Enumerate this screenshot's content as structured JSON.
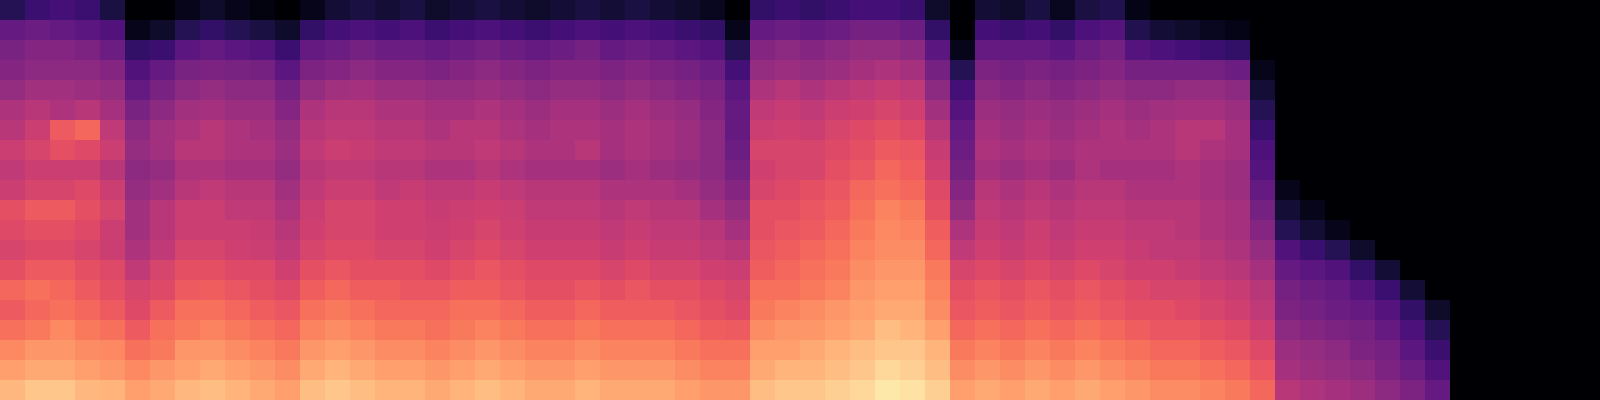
{
  "chart_data": {
    "type": "heatmap",
    "color": "magma",
    "tick_labels": false,
    "zlim": [
      0,
      100
    ],
    "z": [
      [
        15,
        30,
        35,
        38,
        42,
        48,
        50,
        55,
        52,
        55,
        62,
        60,
        58,
        62,
        68,
        65,
        70,
        75,
        80,
        85
      ],
      [
        20,
        32,
        38,
        40,
        45,
        50,
        55,
        58,
        55,
        58,
        65,
        62,
        60,
        65,
        70,
        68,
        72,
        78,
        82,
        88
      ],
      [
        22,
        30,
        38,
        40,
        45,
        48,
        65,
        62,
        55,
        58,
        65,
        62,
        60,
        65,
        68,
        70,
        75,
        78,
        82,
        88
      ],
      [
        20,
        28,
        36,
        40,
        44,
        50,
        68,
        60,
        55,
        60,
        62,
        60,
        58,
        62,
        65,
        68,
        72,
        76,
        80,
        85
      ],
      [
        12,
        25,
        32,
        38,
        42,
        46,
        52,
        55,
        50,
        55,
        58,
        55,
        55,
        60,
        62,
        65,
        70,
        75,
        78,
        84
      ],
      [
        0,
        5,
        18,
        25,
        30,
        35,
        40,
        42,
        40,
        42,
        45,
        45,
        48,
        52,
        58,
        60,
        65,
        70,
        75,
        80
      ],
      [
        0,
        8,
        20,
        30,
        35,
        40,
        45,
        45,
        42,
        45,
        50,
        50,
        52,
        58,
        60,
        65,
        70,
        72,
        78,
        82
      ],
      [
        5,
        15,
        28,
        35,
        40,
        45,
        48,
        50,
        48,
        50,
        55,
        55,
        58,
        62,
        65,
        70,
        72,
        78,
        80,
        85
      ],
      [
        8,
        18,
        30,
        36,
        42,
        46,
        50,
        50,
        48,
        52,
        55,
        55,
        58,
        62,
        66,
        70,
        74,
        78,
        82,
        86
      ],
      [
        5,
        15,
        28,
        35,
        40,
        44,
        48,
        48,
        46,
        50,
        52,
        55,
        56,
        60,
        64,
        68,
        72,
        76,
        80,
        84
      ],
      [
        3,
        12,
        26,
        34,
        40,
        44,
        46,
        48,
        46,
        50,
        52,
        54,
        55,
        60,
        62,
        66,
        70,
        74,
        78,
        82
      ],
      [
        0,
        8,
        20,
        28,
        34,
        38,
        42,
        44,
        42,
        45,
        48,
        50,
        52,
        56,
        60,
        64,
        68,
        72,
        76,
        80
      ],
      [
        5,
        18,
        30,
        36,
        42,
        48,
        50,
        52,
        50,
        52,
        55,
        56,
        58,
        62,
        66,
        70,
        74,
        78,
        82,
        86
      ],
      [
        10,
        22,
        32,
        38,
        45,
        50,
        52,
        55,
        52,
        55,
        58,
        58,
        60,
        64,
        68,
        72,
        76,
        80,
        84,
        88
      ],
      [
        12,
        24,
        34,
        40,
        46,
        50,
        52,
        54,
        52,
        55,
        58,
        58,
        60,
        62,
        66,
        70,
        74,
        78,
        82,
        86
      ],
      [
        10,
        22,
        32,
        38,
        44,
        48,
        50,
        52,
        50,
        52,
        56,
        56,
        58,
        62,
        66,
        68,
        72,
        76,
        80,
        84
      ],
      [
        12,
        24,
        32,
        38,
        44,
        48,
        50,
        52,
        50,
        54,
        56,
        56,
        58,
        62,
        64,
        68,
        72,
        76,
        80,
        84
      ],
      [
        8,
        20,
        30,
        36,
        42,
        46,
        48,
        50,
        48,
        52,
        54,
        55,
        56,
        60,
        64,
        68,
        70,
        74,
        78,
        82
      ],
      [
        10,
        22,
        32,
        38,
        42,
        46,
        50,
        50,
        48,
        52,
        55,
        56,
        58,
        62,
        66,
        70,
        72,
        76,
        80,
        84
      ],
      [
        12,
        24,
        34,
        40,
        44,
        48,
        50,
        52,
        50,
        54,
        56,
        58,
        60,
        64,
        66,
        70,
        74,
        78,
        82,
        86
      ],
      [
        10,
        22,
        32,
        38,
        42,
        46,
        48,
        50,
        48,
        52,
        55,
        56,
        58,
        62,
        64,
        68,
        72,
        76,
        80,
        84
      ],
      [
        8,
        20,
        30,
        36,
        40,
        44,
        46,
        48,
        46,
        50,
        52,
        54,
        56,
        60,
        62,
        66,
        70,
        74,
        78,
        82
      ],
      [
        10,
        22,
        32,
        38,
        42,
        46,
        48,
        48,
        46,
        50,
        52,
        54,
        56,
        60,
        62,
        66,
        70,
        74,
        78,
        82
      ],
      [
        12,
        24,
        34,
        38,
        42,
        46,
        48,
        50,
        46,
        50,
        52,
        54,
        56,
        60,
        64,
        68,
        72,
        76,
        80,
        84
      ],
      [
        10,
        22,
        30,
        36,
        40,
        44,
        46,
        46,
        44,
        48,
        50,
        52,
        54,
        58,
        62,
        66,
        70,
        74,
        78,
        82
      ],
      [
        12,
        24,
        32,
        38,
        42,
        46,
        48,
        48,
        46,
        48,
        52,
        54,
        56,
        60,
        64,
        66,
        70,
        74,
        78,
        82
      ],
      [
        10,
        22,
        30,
        36,
        40,
        44,
        46,
        46,
        44,
        48,
        50,
        52,
        54,
        58,
        62,
        66,
        70,
        74,
        78,
        82
      ],
      [
        8,
        20,
        28,
        34,
        38,
        42,
        44,
        44,
        42,
        46,
        50,
        52,
        54,
        58,
        62,
        64,
        68,
        72,
        76,
        80
      ],
      [
        6,
        18,
        26,
        32,
        36,
        38,
        40,
        40,
        40,
        42,
        46,
        50,
        52,
        56,
        60,
        62,
        66,
        70,
        74,
        78
      ],
      [
        0,
        5,
        15,
        22,
        28,
        30,
        30,
        32,
        34,
        38,
        42,
        46,
        50,
        55,
        58,
        60,
        65,
        70,
        74,
        78
      ],
      [
        18,
        30,
        38,
        42,
        48,
        52,
        55,
        58,
        56,
        58,
        62,
        62,
        64,
        66,
        70,
        72,
        76,
        80,
        82,
        86
      ],
      [
        20,
        32,
        40,
        44,
        50,
        54,
        56,
        58,
        58,
        60,
        62,
        64,
        66,
        68,
        70,
        74,
        78,
        80,
        84,
        88
      ],
      [
        18,
        30,
        38,
        42,
        48,
        52,
        55,
        58,
        58,
        62,
        64,
        65,
        68,
        70,
        72,
        76,
        78,
        82,
        84,
        88
      ],
      [
        20,
        32,
        40,
        44,
        50,
        55,
        58,
        60,
        62,
        64,
        66,
        68,
        70,
        72,
        74,
        78,
        80,
        84,
        86,
        90
      ],
      [
        22,
        34,
        42,
        46,
        52,
        56,
        60,
        62,
        64,
        68,
        70,
        72,
        74,
        76,
        78,
        80,
        82,
        86,
        88,
        92
      ],
      [
        22,
        34,
        42,
        48,
        54,
        58,
        62,
        65,
        68,
        70,
        74,
        75,
        76,
        78,
        80,
        82,
        86,
        88,
        92,
        95
      ],
      [
        20,
        32,
        40,
        46,
        52,
        56,
        60,
        64,
        66,
        68,
        72,
        74,
        76,
        78,
        80,
        82,
        84,
        88,
        90,
        94
      ],
      [
        8,
        18,
        28,
        34,
        40,
        45,
        50,
        54,
        56,
        60,
        62,
        66,
        68,
        72,
        74,
        76,
        80,
        84,
        86,
        90
      ],
      [
        0,
        0,
        5,
        15,
        22,
        26,
        30,
        32,
        34,
        38,
        42,
        48,
        52,
        58,
        62,
        64,
        68,
        72,
        76,
        80
      ],
      [
        10,
        22,
        30,
        36,
        40,
        44,
        46,
        48,
        46,
        50,
        52,
        54,
        56,
        60,
        64,
        66,
        70,
        74,
        78,
        82
      ],
      [
        8,
        20,
        30,
        34,
        38,
        42,
        44,
        46,
        44,
        48,
        50,
        52,
        54,
        58,
        62,
        64,
        68,
        72,
        76,
        80
      ],
      [
        12,
        22,
        30,
        36,
        40,
        44,
        46,
        48,
        46,
        50,
        52,
        55,
        56,
        60,
        64,
        66,
        70,
        74,
        78,
        82
      ],
      [
        6,
        18,
        28,
        34,
        38,
        42,
        44,
        46,
        44,
        48,
        50,
        52,
        54,
        58,
        62,
        64,
        68,
        72,
        76,
        80
      ],
      [
        12,
        24,
        32,
        36,
        40,
        44,
        46,
        48,
        48,
        50,
        52,
        54,
        56,
        60,
        64,
        66,
        70,
        74,
        78,
        82
      ],
      [
        14,
        26,
        34,
        38,
        42,
        46,
        48,
        48,
        46,
        50,
        52,
        54,
        56,
        58,
        62,
        64,
        68,
        72,
        76,
        80
      ],
      [
        4,
        14,
        26,
        34,
        40,
        44,
        46,
        48,
        46,
        48,
        50,
        52,
        54,
        56,
        60,
        62,
        66,
        70,
        74,
        78
      ],
      [
        0,
        10,
        24,
        34,
        40,
        45,
        48,
        48,
        46,
        48,
        50,
        52,
        52,
        56,
        58,
        62,
        64,
        68,
        72,
        76
      ],
      [
        0,
        8,
        22,
        34,
        42,
        46,
        50,
        50,
        48,
        48,
        50,
        50,
        52,
        54,
        58,
        60,
        64,
        68,
        72,
        76
      ],
      [
        0,
        6,
        20,
        34,
        42,
        46,
        50,
        48,
        46,
        46,
        48,
        48,
        50,
        52,
        56,
        58,
        62,
        66,
        70,
        74
      ],
      [
        0,
        4,
        18,
        32,
        40,
        44,
        46,
        46,
        44,
        44,
        46,
        46,
        48,
        50,
        54,
        56,
        60,
        64,
        68,
        72
      ],
      [
        0,
        0,
        0,
        5,
        10,
        15,
        20,
        24,
        26,
        30,
        34,
        38,
        42,
        46,
        50,
        52,
        56,
        60,
        64,
        68
      ],
      [
        0,
        0,
        0,
        0,
        0,
        0,
        0,
        0,
        0,
        5,
        10,
        15,
        25,
        30,
        34,
        36,
        40,
        44,
        46,
        50
      ],
      [
        0,
        0,
        0,
        0,
        0,
        0,
        0,
        0,
        0,
        0,
        5,
        10,
        20,
        28,
        32,
        34,
        38,
        42,
        44,
        48
      ],
      [
        0,
        0,
        0,
        0,
        0,
        0,
        0,
        0,
        0,
        0,
        0,
        5,
        15,
        25,
        30,
        32,
        36,
        40,
        42,
        46
      ],
      [
        0,
        0,
        0,
        0,
        0,
        0,
        0,
        0,
        0,
        0,
        0,
        0,
        8,
        18,
        26,
        30,
        34,
        36,
        40,
        44
      ],
      [
        0,
        0,
        0,
        0,
        0,
        0,
        0,
        0,
        0,
        0,
        0,
        0,
        0,
        10,
        20,
        26,
        30,
        34,
        36,
        40
      ],
      [
        0,
        0,
        0,
        0,
        0,
        0,
        0,
        0,
        0,
        0,
        0,
        0,
        0,
        0,
        10,
        18,
        24,
        28,
        32,
        36
      ],
      [
        0,
        0,
        0,
        0,
        0,
        0,
        0,
        0,
        0,
        0,
        0,
        0,
        0,
        0,
        0,
        8,
        15,
        20,
        25,
        30
      ],
      [
        0,
        0,
        0,
        0,
        0,
        0,
        0,
        0,
        0,
        0,
        0,
        0,
        0,
        0,
        0,
        0,
        0,
        0,
        0,
        0
      ],
      [
        0,
        0,
        0,
        0,
        0,
        0,
        0,
        0,
        0,
        0,
        0,
        0,
        0,
        0,
        0,
        0,
        0,
        0,
        0,
        0
      ],
      [
        0,
        0,
        0,
        0,
        0,
        0,
        0,
        0,
        0,
        0,
        0,
        0,
        0,
        0,
        0,
        0,
        0,
        0,
        0,
        0
      ],
      [
        0,
        0,
        0,
        0,
        0,
        0,
        0,
        0,
        0,
        0,
        0,
        0,
        0,
        0,
        0,
        0,
        0,
        0,
        0,
        0
      ],
      [
        0,
        0,
        0,
        0,
        0,
        0,
        0,
        0,
        0,
        0,
        0,
        0,
        0,
        0,
        0,
        0,
        0,
        0,
        0,
        0
      ],
      [
        0,
        0,
        0,
        0,
        0,
        0,
        0,
        0,
        0,
        0,
        0,
        0,
        0,
        0,
        0,
        0,
        0,
        0,
        0,
        0
      ]
    ]
  }
}
